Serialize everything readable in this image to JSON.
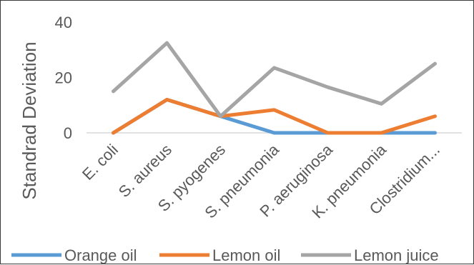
{
  "chart_data": {
    "type": "line",
    "categories": [
      "E. coli",
      "S. aureus",
      "S. pyogenes",
      "S. pneumonia",
      "P. aeruginosa",
      "K. pneumonia",
      "Clostridium..."
    ],
    "series": [
      {
        "name": "Orange oil",
        "color": "#5B9BD5",
        "values": [
          0,
          12,
          6,
          0,
          0,
          0,
          0
        ]
      },
      {
        "name": "Lemon oil",
        "color": "#ED7D31",
        "values": [
          0,
          12,
          6,
          8.3,
          0,
          0,
          6
        ]
      },
      {
        "name": "Lemon juice",
        "color": "#A5A5A5",
        "values": [
          15,
          32.5,
          6,
          23.5,
          16.5,
          10.5,
          25
        ]
      }
    ],
    "ylabel": "Standrad Deviation",
    "ylim": [
      0,
      40
    ],
    "yticks": [
      0,
      20,
      40
    ],
    "grid": false,
    "legend_position": "bottom"
  }
}
